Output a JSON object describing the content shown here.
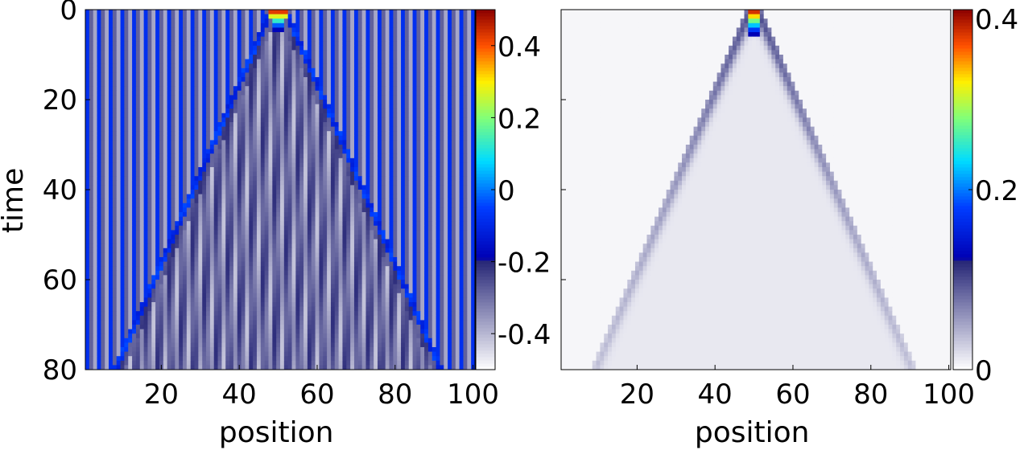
{
  "chart_data": [
    {
      "type": "heatmap",
      "title": "",
      "xlabel": "position",
      "ylabel": "time",
      "xlim": [
        1,
        100
      ],
      "ylim": [
        0,
        80
      ],
      "y_direction": "down",
      "xticks": [
        "20",
        "40",
        "60",
        "80",
        "100"
      ],
      "yticks": [
        "0",
        "20",
        "40",
        "60",
        "80"
      ],
      "colorbar": {
        "range": [
          -0.5,
          0.5
        ],
        "ticks": [
          "-0.4",
          "-0.2",
          "0",
          "0.2",
          "0.4"
        ],
        "colormap": "white-navy-blue-cyan-yellow-red"
      },
      "description_values": {
        "peak_position": 50,
        "peak_time": 0,
        "peak_value": 0.5,
        "background_value": -0.2,
        "cone_speed_positions_per_time": 0.5
      }
    },
    {
      "type": "heatmap",
      "title": "",
      "xlabel": "position",
      "ylabel": "",
      "xlim": [
        1,
        100
      ],
      "ylim": [
        0,
        80
      ],
      "y_direction": "down",
      "xticks": [
        "20",
        "40",
        "60",
        "80",
        "100"
      ],
      "yticks": [],
      "colorbar": {
        "range": [
          0,
          0.4
        ],
        "ticks": [
          "0",
          "0.2",
          "0.4"
        ],
        "colormap": "white-navy-blue-cyan-yellow-red"
      },
      "description_values": {
        "peak_position": 50,
        "peak_time": 0,
        "peak_value": 0.4,
        "background_value": 0.005,
        "cone_speed_positions_per_time": 0.5
      }
    }
  ]
}
